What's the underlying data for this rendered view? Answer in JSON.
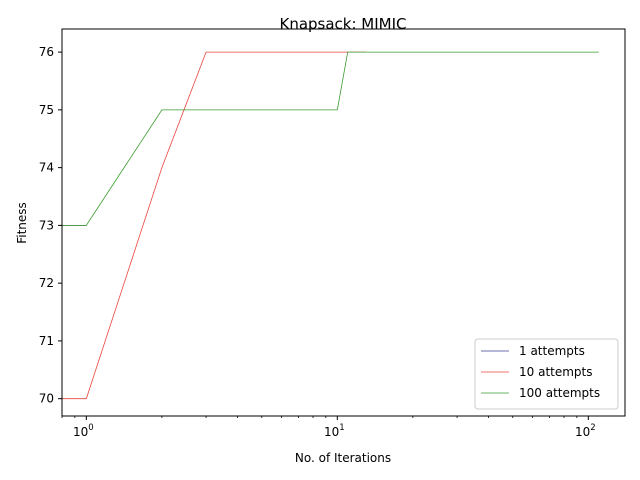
{
  "chart_data": {
    "type": "line",
    "title": "Knapsack: MIMIC",
    "xlabel": "No. of Iterations",
    "ylabel": "Fitness",
    "x_scale": "log",
    "xlim": [
      0.8,
      140
    ],
    "ylim": [
      69.7,
      76.4
    ],
    "x_ticks": [
      {
        "value": 1,
        "base": "10",
        "exp": "0"
      },
      {
        "value": 10,
        "base": "10",
        "exp": "1"
      },
      {
        "value": 100,
        "base": "10",
        "exp": "2"
      }
    ],
    "y_ticks": [
      {
        "value": 70,
        "label": "70"
      },
      {
        "value": 71,
        "label": "71"
      },
      {
        "value": 72,
        "label": "72"
      },
      {
        "value": 73,
        "label": "73"
      },
      {
        "value": 74,
        "label": "74"
      },
      {
        "value": 75,
        "label": "75"
      },
      {
        "value": 76,
        "label": "76"
      }
    ],
    "grid": false,
    "legend_position": "bottom-right",
    "series": [
      {
        "name": "1 attempts",
        "color": "#3b3b8f",
        "points": [
          [
            0.8,
            73
          ],
          [
            1,
            73
          ]
        ]
      },
      {
        "name": "10 attempts",
        "color": "#e8453c",
        "points": [
          [
            0.8,
            70
          ],
          [
            1,
            70
          ],
          [
            2,
            74
          ],
          [
            3,
            76
          ],
          [
            13,
            76
          ]
        ]
      },
      {
        "name": "100 attempts",
        "color": "#3a9a2e",
        "points": [
          [
            0.8,
            73
          ],
          [
            1,
            73
          ],
          [
            2,
            75
          ],
          [
            10,
            75
          ],
          [
            11,
            76
          ],
          [
            110,
            76
          ]
        ]
      }
    ]
  }
}
